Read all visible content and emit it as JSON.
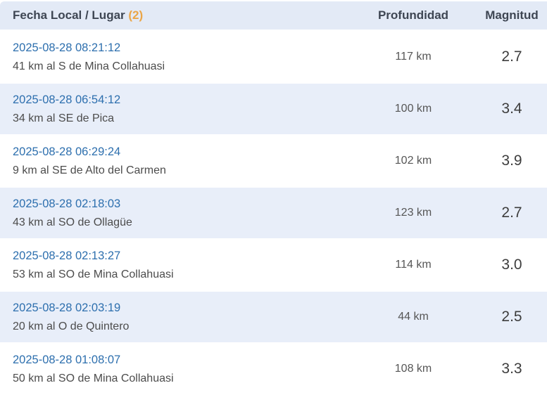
{
  "header": {
    "col_fecha": "Fecha Local / Lugar",
    "col_fecha_count": "(2)",
    "col_profundidad": "Profundidad",
    "col_magnitud": "Magnitud"
  },
  "colors": {
    "header_bg": "#e3eaf6",
    "row_alt_bg": "#e8eef9",
    "link_blue": "#2d6fae",
    "accent_orange": "#eba648"
  },
  "rows": [
    {
      "datetime": "2025-08-28 08:21:12",
      "place": "41 km al S de Mina Collahuasi",
      "depth": "117 km",
      "magnitude": "2.7"
    },
    {
      "datetime": "2025-08-28 06:54:12",
      "place": "34 km al SE de Pica",
      "depth": "100 km",
      "magnitude": "3.4"
    },
    {
      "datetime": "2025-08-28 06:29:24",
      "place": "9 km al SE de Alto del Carmen",
      "depth": "102 km",
      "magnitude": "3.9"
    },
    {
      "datetime": "2025-08-28 02:18:03",
      "place": "43 km al SO de Ollagüe",
      "depth": "123 km",
      "magnitude": "2.7"
    },
    {
      "datetime": "2025-08-28 02:13:27",
      "place": "53 km al SO de Mina Collahuasi",
      "depth": "114 km",
      "magnitude": "3.0"
    },
    {
      "datetime": "2025-08-28 02:03:19",
      "place": "20 km al O de Quintero",
      "depth": "44 km",
      "magnitude": "2.5"
    },
    {
      "datetime": "2025-08-28 01:08:07",
      "place": "50 km al SO de Mina Collahuasi",
      "depth": "108 km",
      "magnitude": "3.3"
    }
  ]
}
